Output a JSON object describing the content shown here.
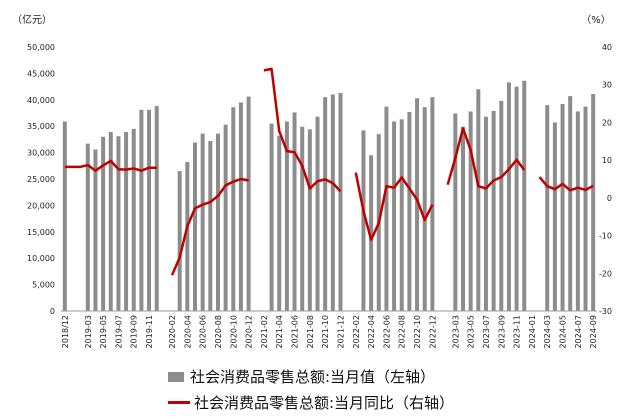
{
  "chart_data": {
    "type": "bar+line",
    "title": "",
    "y_left": {
      "unit": "（亿元）",
      "min": 0,
      "max": 50000,
      "step": 5000,
      "ticks": [
        "0",
        "5,000",
        "10,000",
        "15,000",
        "20,000",
        "25,000",
        "30,000",
        "35,000",
        "40,000",
        "45,000",
        "50,000"
      ]
    },
    "y_right": {
      "unit": "（%）",
      "min": -30,
      "max": 40,
      "step": 10,
      "ticks": [
        "-30",
        "-20",
        "-10",
        "0",
        "10",
        "20",
        "30",
        "40"
      ]
    },
    "x_tick_labels": [
      "2018/12",
      "2019-03",
      "2019-05",
      "2019-07",
      "2019-09",
      "2019-11",
      "2020-02",
      "2020-04",
      "2020-06",
      "2020-08",
      "2020-10",
      "2020-12",
      "2021-02",
      "2021-04",
      "2021-06",
      "2021-08",
      "2021-10",
      "2021-12",
      "2022-02",
      "2022-04",
      "2022-06",
      "2022-08",
      "2022-10",
      "2022-12",
      "2023-03",
      "2023-05",
      "2023-07",
      "2023-09",
      "2023-11",
      "2024-01",
      "2024-03",
      "2024-05",
      "2024-07",
      "2024-09"
    ],
    "months": [
      "2018-12",
      "2019-01",
      "2019-02",
      "2019-03",
      "2019-04",
      "2019-05",
      "2019-06",
      "2019-07",
      "2019-08",
      "2019-09",
      "2019-10",
      "2019-11",
      "2019-12",
      "2020-01",
      "2020-02",
      "2020-03",
      "2020-04",
      "2020-05",
      "2020-06",
      "2020-07",
      "2020-08",
      "2020-09",
      "2020-10",
      "2020-11",
      "2020-12",
      "2021-01",
      "2021-02",
      "2021-03",
      "2021-04",
      "2021-05",
      "2021-06",
      "2021-07",
      "2021-08",
      "2021-09",
      "2021-10",
      "2021-11",
      "2021-12",
      "2022-01",
      "2022-02",
      "2022-03",
      "2022-04",
      "2022-05",
      "2022-06",
      "2022-07",
      "2022-08",
      "2022-09",
      "2022-10",
      "2022-11",
      "2022-12",
      "2023-01",
      "2023-02",
      "2023-03",
      "2023-04",
      "2023-05",
      "2023-06",
      "2023-07",
      "2023-08",
      "2023-09",
      "2023-10",
      "2023-11",
      "2023-12",
      "2024-01",
      "2024-02",
      "2024-03",
      "2024-04",
      "2024-05",
      "2024-06",
      "2024-07",
      "2024-08",
      "2024-09"
    ],
    "series": [
      {
        "name": "社会消费品零售总额:当月值（左轴）",
        "type": "bar",
        "axis": "left",
        "color": "#8c8c8c",
        "values": [
          35900,
          null,
          null,
          31700,
          30600,
          33000,
          33900,
          33100,
          33900,
          34500,
          38100,
          38100,
          38800,
          null,
          null,
          26500,
          28200,
          31900,
          33600,
          32200,
          33600,
          35300,
          38600,
          39500,
          40600,
          null,
          null,
          35500,
          33200,
          35900,
          37600,
          34900,
          34400,
          36800,
          40500,
          41000,
          41300,
          null,
          null,
          34200,
          29500,
          33500,
          38700,
          35900,
          36300,
          37700,
          40300,
          38600,
          40500,
          null,
          null,
          37400,
          34900,
          37800,
          42000,
          36800,
          37900,
          39800,
          43300,
          42500,
          43600,
          null,
          null,
          39000,
          35700,
          39200,
          40700,
          37800,
          38700,
          41100
        ]
      },
      {
        "name": "社会消费品零售总额:当月同比（右轴）",
        "type": "line",
        "axis": "right",
        "color": "#c00000",
        "values": [
          8.2,
          8.2,
          8.2,
          8.7,
          7.2,
          8.6,
          9.8,
          7.6,
          7.5,
          7.8,
          7.2,
          8.0,
          8.0,
          null,
          -20.5,
          -15.8,
          -7.5,
          -2.8,
          -1.8,
          -1.1,
          0.5,
          3.3,
          4.3,
          5.0,
          4.6,
          null,
          33.8,
          34.2,
          17.7,
          12.4,
          12.1,
          8.5,
          2.5,
          4.4,
          4.9,
          3.9,
          1.7,
          null,
          6.7,
          -3.5,
          -11.1,
          -6.7,
          3.1,
          2.7,
          5.4,
          2.5,
          -0.5,
          -5.9,
          -1.8,
          null,
          3.5,
          10.6,
          18.4,
          12.7,
          3.1,
          2.5,
          4.6,
          5.5,
          7.6,
          10.1,
          7.4,
          null,
          5.5,
          3.1,
          2.3,
          3.7,
          2.0,
          2.7,
          2.1,
          3.2
        ]
      }
    ]
  }
}
